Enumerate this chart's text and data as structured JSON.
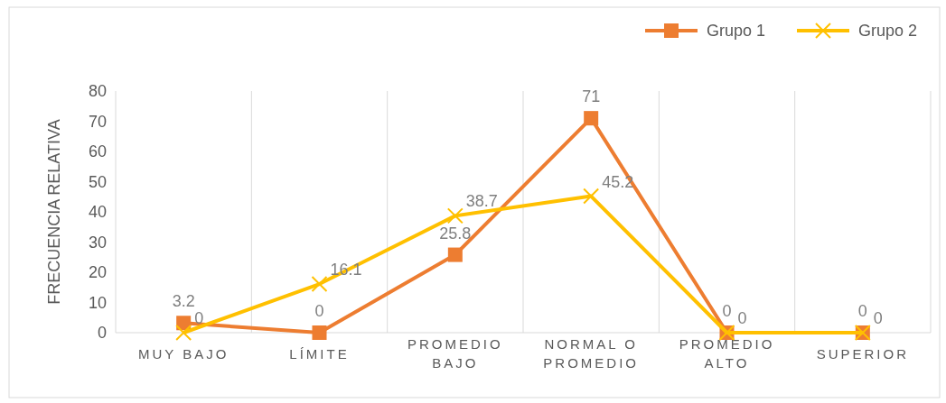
{
  "chart_data": {
    "type": "line",
    "ylabel": "FRECUENCIA RELATIVA",
    "categories": [
      "MUY BAJO",
      "LÍMITE",
      "PROMEDIO BAJO",
      "NORMAL O PROMEDIO",
      "PROMEDIO ALTO",
      "SUPERIOR"
    ],
    "series": [
      {
        "name": "Grupo 1",
        "color": "#ed7d31",
        "marker": "square",
        "values": [
          3.2,
          0,
          25.8,
          71,
          0,
          0
        ]
      },
      {
        "name": "Grupo 2",
        "color": "#ffc000",
        "marker": "cross",
        "values": [
          0,
          16.1,
          38.7,
          45.2,
          0,
          0
        ]
      }
    ],
    "ylim": [
      0,
      80
    ],
    "yticks": [
      0,
      10,
      20,
      30,
      40,
      50,
      60,
      70,
      80
    ],
    "grid": "x",
    "legend": "top right",
    "data_labels": true
  }
}
